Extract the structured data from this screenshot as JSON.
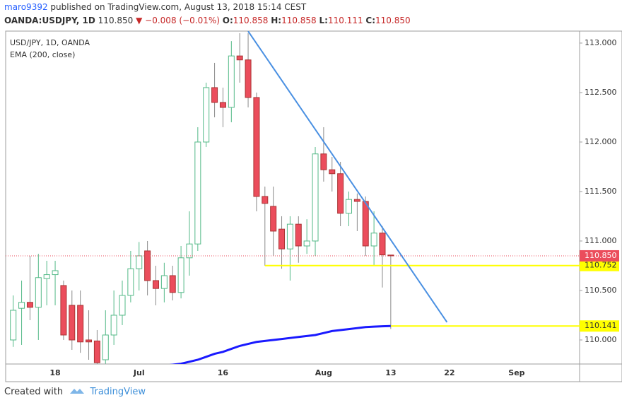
{
  "header": {
    "author": "maro9392",
    "published": "published on TradingView.com, August 13, 2018 15:14 CEST",
    "symbol": "OANDA:USDJPY, 1D",
    "last": "110.850",
    "change": "▼ −0.008 (−0.01%)",
    "ohlc": [
      {
        "label": "O:",
        "value": "110.858"
      },
      {
        "label": "H:",
        "value": "110.858"
      },
      {
        "label": "L:",
        "value": "110.111"
      },
      {
        "label": "C:",
        "value": "110.850"
      }
    ]
  },
  "footer": {
    "created": "Created with",
    "brand": "TradingView"
  },
  "chart_data": {
    "type": "candlestick",
    "categories": [
      null,
      null,
      null,
      null,
      null,
      "18",
      null,
      null,
      null,
      null,
      null,
      null,
      null,
      null,
      null,
      "Jul",
      null,
      null,
      null,
      null,
      null,
      null,
      null,
      null,
      null,
      "16",
      null,
      null,
      null,
      null,
      null,
      null,
      null,
      null,
      null,
      null,
      null,
      "Aug",
      null,
      null,
      null,
      null,
      null,
      null,
      null,
      "13",
      null,
      null,
      null,
      null,
      null,
      null,
      "22",
      null,
      null,
      null,
      null,
      null,
      null,
      null,
      "Sep",
      null,
      null,
      null,
      null,
      null,
      null,
      null
    ],
    "series": [
      {
        "name": "USD/JPY, 1D, OANDA",
        "up_color": "#53b987",
        "down_color": "#eb4d5c",
        "open": [
          110.0,
          110.32,
          110.38,
          110.33,
          110.62,
          110.66,
          110.55,
          110.35,
          110.35,
          110.0,
          109.99,
          109.8,
          110.05,
          110.25,
          110.45,
          110.72,
          110.9,
          110.6,
          110.52,
          110.65,
          110.48,
          110.83,
          110.97,
          112.0,
          112.55,
          112.4,
          112.35,
          112.87,
          112.83,
          112.45,
          111.45,
          111.35,
          111.12,
          110.92,
          111.17,
          110.95,
          111.0,
          111.88,
          111.72,
          111.68,
          111.28,
          111.42,
          111.4,
          110.95,
          111.08,
          110.858,
          null,
          null,
          null,
          null,
          null,
          null,
          null,
          null,
          null,
          null,
          null,
          null,
          null,
          null,
          null,
          null,
          null,
          null,
          null,
          null,
          null,
          null
        ],
        "high": [
          110.45,
          110.6,
          110.85,
          110.87,
          110.8,
          110.8,
          110.6,
          110.5,
          110.5,
          110.3,
          110.1,
          110.3,
          110.5,
          110.6,
          110.9,
          110.99,
          111.0,
          110.75,
          110.78,
          110.75,
          110.95,
          111.3,
          112.15,
          112.6,
          112.8,
          112.55,
          113.02,
          113.1,
          113.1,
          112.5,
          111.55,
          111.55,
          111.25,
          111.25,
          111.25,
          111.22,
          111.95,
          112.15,
          111.85,
          111.8,
          111.5,
          111.48,
          111.45,
          111.3,
          111.15,
          110.858,
          null,
          null,
          null,
          null,
          null,
          null,
          null,
          null,
          null,
          null,
          null,
          null,
          null,
          null,
          null,
          null,
          null,
          null,
          null,
          null,
          null,
          null
        ],
        "low": [
          109.93,
          109.95,
          110.2,
          110.0,
          110.35,
          110.35,
          110.0,
          109.9,
          109.87,
          109.8,
          109.74,
          109.76,
          109.95,
          110.15,
          110.38,
          110.5,
          110.45,
          110.35,
          110.38,
          110.4,
          110.42,
          110.65,
          110.9,
          111.95,
          112.25,
          112.15,
          112.2,
          112.6,
          112.35,
          111.3,
          110.75,
          110.85,
          110.72,
          110.6,
          110.78,
          110.87,
          110.85,
          111.6,
          111.5,
          111.15,
          111.15,
          111.1,
          110.85,
          110.75,
          110.53,
          110.111,
          null,
          null,
          null,
          null,
          null,
          null,
          null,
          null,
          null,
          null,
          null,
          null,
          null,
          null,
          null,
          null,
          null,
          null,
          null,
          null,
          null,
          null
        ],
        "close": [
          110.3,
          110.38,
          110.33,
          110.63,
          110.66,
          110.7,
          110.05,
          110.0,
          109.98,
          109.98,
          109.77,
          110.05,
          110.25,
          110.45,
          110.72,
          110.85,
          110.6,
          110.52,
          110.65,
          110.48,
          110.83,
          110.97,
          112.0,
          112.55,
          112.4,
          112.35,
          112.87,
          112.83,
          112.45,
          111.45,
          111.38,
          111.1,
          110.92,
          111.17,
          110.95,
          111.0,
          111.88,
          111.72,
          111.68,
          111.28,
          111.42,
          111.4,
          110.95,
          111.08,
          110.86,
          110.85,
          null,
          null,
          null,
          null,
          null,
          null,
          null,
          null,
          null,
          null,
          null,
          null,
          null,
          null,
          null,
          null,
          null,
          null,
          null,
          null,
          null,
          null
        ]
      },
      {
        "name": "EMA (200, close)",
        "color": "#1a1aff",
        "values": [
          null,
          null,
          null,
          null,
          null,
          null,
          null,
          null,
          null,
          null,
          null,
          null,
          null,
          null,
          null,
          null,
          null,
          null,
          109.74,
          109.75,
          109.76,
          109.78,
          109.8,
          109.83,
          109.86,
          109.88,
          109.91,
          109.94,
          109.96,
          109.98,
          109.99,
          110.0,
          110.01,
          110.02,
          110.03,
          110.04,
          110.05,
          110.07,
          110.09,
          110.1,
          110.11,
          110.12,
          110.13,
          110.135,
          110.138,
          110.141,
          null,
          null,
          null,
          null,
          null,
          null,
          null,
          null,
          null,
          null,
          null,
          null,
          null,
          null,
          null,
          null,
          null,
          null,
          null,
          null,
          null,
          null
        ]
      }
    ],
    "ylim": [
      109.757,
      113.121
    ],
    "yticks": [
      {
        "value": 110,
        "label": "110.000"
      },
      {
        "value": 110.5,
        "label": "110.500"
      },
      {
        "value": 111,
        "label": "111.000"
      },
      {
        "value": 111.5,
        "label": "111.500"
      },
      {
        "value": 112,
        "label": "112.000"
      },
      {
        "value": 112.5,
        "label": "112.500"
      },
      {
        "value": 113,
        "label": "113.000"
      }
    ],
    "grid": false,
    "last_price": {
      "value": 110.85,
      "label": "110.850",
      "color": "#eb4d5c"
    },
    "horizontal_lines": [
      {
        "value": 110.752,
        "start": 30,
        "color": "#ffff00"
      },
      {
        "value": 110.141,
        "start": 45,
        "color": "#ffff00"
      }
    ],
    "trend_line": {
      "x": [
        28,
        51.7
      ],
      "y": [
        113.12,
        110.18
      ],
      "color": "#4a90e2"
    }
  }
}
